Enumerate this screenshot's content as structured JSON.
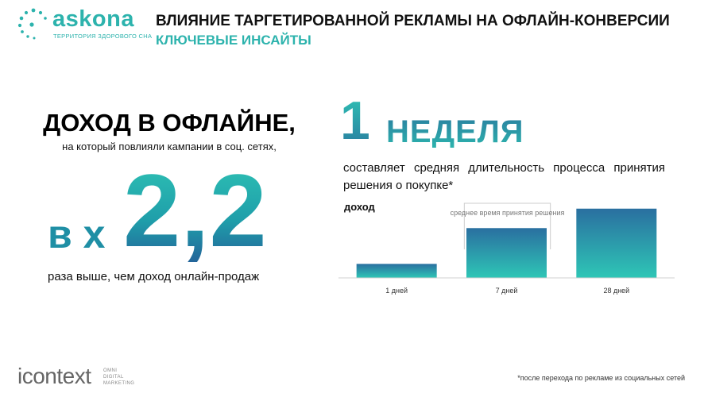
{
  "header": {
    "logo_text": "askona",
    "logo_tagline": "ТЕРРИТОРИЯ ЗДОРОВОГО СНА",
    "title": "ВЛИЯНИЕ ТАРГЕТИРОВАННОЙ РЕКЛАМЫ НА ОФЛАЙН-КОНВЕРСИИ",
    "subtitle": "КЛЮЧЕВЫЕ ИНСАЙТЫ"
  },
  "left_panel": {
    "heading": "ДОХОД В ОФЛАЙНЕ,",
    "subheading": "на который повлияли кампании в соц. сетях,",
    "multiplier_prefix": "в х",
    "multiplier_value": "2,2",
    "footer": "раза выше, чем доход онлайн-продаж"
  },
  "right_panel": {
    "number": "1",
    "unit": "НЕДЕЛЯ",
    "description": "составляет средняя длительность процесса принятия решения о покупке*"
  },
  "chart_data": {
    "type": "bar",
    "ylabel": "доход",
    "categories": [
      "1 дней",
      "7 дней",
      "28 дней"
    ],
    "values": [
      18,
      64,
      89
    ],
    "ylim": [
      0,
      100
    ],
    "annotation": "среднее время принятия решения",
    "annotation_spans_categories": [
      "7 дней"
    ],
    "colors": {
      "top": "#2a6fa0",
      "bottom": "#2ec6b6"
    }
  },
  "footnote": "*после перехода по рекламе из социальных сетей",
  "brand": {
    "name": "icontext",
    "tag_line1": "OMNI",
    "tag_line2": "DIGITAL",
    "tag_line3": "MARKETING"
  },
  "colors": {
    "accent": "#2db3ad",
    "accent_dark": "#23659a",
    "text": "#111111"
  }
}
